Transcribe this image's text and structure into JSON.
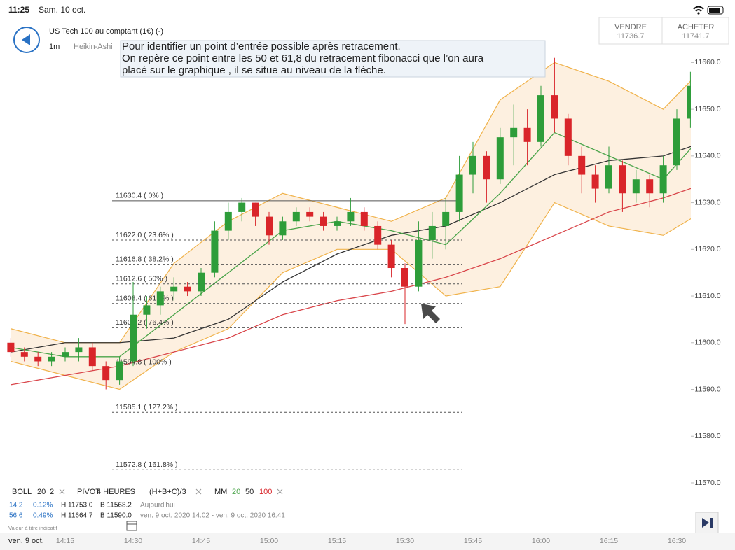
{
  "status_bar": {
    "time": "11:25",
    "date": "Sam. 10 oct."
  },
  "header": {
    "instrument": "US Tech 100 au comptant (1€) (-)",
    "interval": "1m",
    "chart_style": "Heikin-Ashi",
    "sell_label": "VENDRE",
    "sell_price": "11736.7",
    "buy_label": "ACHETER",
    "buy_price": "11741.7"
  },
  "annotation": {
    "lines": [
      "Pour identifier un point d’entrée possible après retracement.",
      "On repère ce point entre les 50 et 61,8 du retracement fibonacci que l’on aura",
      "placé sur le graphique , il se situe au niveau de la flèche."
    ]
  },
  "chart_data": {
    "type": "candlestick",
    "up_color": "#2e9d3a",
    "down_color": "#d9252a",
    "candles": [
      [
        11600,
        11601,
        11597,
        11598
      ],
      [
        11598,
        11599,
        11596,
        11597
      ],
      [
        11597,
        11598,
        11595,
        11596
      ],
      [
        11596,
        11598,
        11595,
        11597
      ],
      [
        11597,
        11599,
        11596,
        11598
      ],
      [
        11598,
        11601,
        11596,
        11599
      ],
      [
        11599,
        11600,
        11594,
        11595
      ],
      [
        11595,
        11596,
        11590,
        11592
      ],
      [
        11592,
        11597,
        11591,
        11596
      ],
      [
        11596,
        11613,
        11595,
        11606
      ],
      [
        11606,
        11610,
        11603,
        11608
      ],
      [
        11608,
        11612,
        11606,
        11611
      ],
      [
        11611,
        11614,
        11609,
        11612
      ],
      [
        11612,
        11613,
        11610,
        11611
      ],
      [
        11611,
        11616,
        11610,
        11615
      ],
      [
        11615,
        11626,
        11614,
        11624
      ],
      [
        11624,
        11630,
        11622,
        11628
      ],
      [
        11628,
        11631,
        11626,
        11630
      ],
      [
        11630,
        11630,
        11625,
        11627
      ],
      [
        11627,
        11628,
        11621,
        11623
      ],
      [
        11623,
        11627,
        11622,
        11626
      ],
      [
        11626,
        11629,
        11625,
        11628
      ],
      [
        11628,
        11629,
        11626,
        11627
      ],
      [
        11627,
        11628,
        11624,
        11625
      ],
      [
        11625,
        11627,
        11624,
        11626
      ],
      [
        11626,
        11631,
        11625,
        11628
      ],
      [
        11628,
        11629,
        11624,
        11625
      ],
      [
        11625,
        11626,
        11620,
        11621
      ],
      [
        11621,
        11622,
        11614,
        11616
      ],
      [
        11616,
        11617,
        11604,
        11612
      ],
      [
        11612,
        11626,
        11611,
        11622
      ],
      [
        11622,
        11628,
        11618,
        11625
      ],
      [
        11625,
        11631,
        11620,
        11628
      ],
      [
        11628,
        11640,
        11626,
        11636
      ],
      [
        11636,
        11643,
        11632,
        11640
      ],
      [
        11640,
        11641,
        11630,
        11635
      ],
      [
        11635,
        11646,
        11634,
        11644
      ],
      [
        11644,
        11651,
        11638,
        11646
      ],
      [
        11646,
        11650,
        11638,
        11643
      ],
      [
        11643,
        11655,
        11642,
        11653
      ],
      [
        11653,
        11661,
        11645,
        11648
      ],
      [
        11648,
        11649,
        11638,
        11640
      ],
      [
        11640,
        11642,
        11632,
        11636
      ],
      [
        11636,
        11638,
        11630,
        11633
      ],
      [
        11633,
        11642,
        11632,
        11638
      ],
      [
        11638,
        11639,
        11628,
        11632
      ],
      [
        11632,
        11637,
        11630,
        11635
      ],
      [
        11635,
        11636,
        11629,
        11632
      ],
      [
        11632,
        11640,
        11630,
        11638
      ],
      [
        11638,
        11650,
        11637,
        11648
      ],
      [
        11648,
        11658,
        11646,
        11655
      ],
      [
        11655,
        11663,
        11652,
        11660
      ],
      [
        11660,
        11661,
        11654,
        11656
      ]
    ],
    "band_fill": "#fdf0e0",
    "band": {
      "upper": [
        11603,
        11600,
        11600,
        11617,
        11626,
        11632,
        11629,
        11626,
        11631,
        11652,
        11660,
        11656,
        11650,
        11662
      ],
      "lower": [
        11596,
        11593,
        11590,
        11598,
        11603,
        11615,
        11620,
        11620,
        11610,
        11612,
        11630,
        11625,
        11623,
        11630
      ],
      "color": "#f0b24a"
    },
    "lines": [
      {
        "color": "#d9454a",
        "values": [
          11591,
          11593,
          11595,
          11598,
          11601,
          11606,
          11609,
          11611,
          11614,
          11618,
          11623,
          11628,
          11631,
          11635
        ]
      },
      {
        "color": "#333333",
        "values": [
          11598,
          11600,
          11600,
          11601,
          11605,
          11613,
          11619,
          11623,
          11625,
          11630,
          11636,
          11639,
          11640,
          11644
        ]
      },
      {
        "color": "#4aa44a",
        "values": [
          11599,
          11597,
          11597,
          11606,
          11615,
          11624,
          11626,
          11624,
          11621,
          11632,
          11645,
          11640,
          11635,
          11648
        ]
      }
    ],
    "fib_levels": [
      {
        "value": 11630.4,
        "label": "11630.4 ( 0% )"
      },
      {
        "value": 11622.0,
        "label": "11622.0 ( 23.6% )"
      },
      {
        "value": 11616.8,
        "label": "11616.8 ( 38.2% )"
      },
      {
        "value": 11612.6,
        "label": "11612.6 ( 50% )"
      },
      {
        "value": 11608.4,
        "label": "11608.4 ( 61.8% )"
      },
      {
        "value": 11603.2,
        "label": "11603.2 ( 76.4% )"
      },
      {
        "value": 11594.8,
        "label": "11594.8 ( 100% )"
      },
      {
        "value": 11585.1,
        "label": "11585.1 ( 127.2% )"
      },
      {
        "value": 11572.8,
        "label": "11572.8 ( 161.8% )"
      }
    ],
    "ylim": [
      11567,
      11668
    ],
    "yticks": [
      {
        "value": 11570,
        "label": "11570.0"
      },
      {
        "value": 11580,
        "label": "11580.0"
      },
      {
        "value": 11590,
        "label": "11590.0"
      },
      {
        "value": 11600,
        "label": "11600.0"
      },
      {
        "value": 11610,
        "label": "11610.0"
      },
      {
        "value": 11620,
        "label": "11620.0"
      },
      {
        "value": 11630,
        "label": "11630.0"
      },
      {
        "value": 11640,
        "label": "11640.0"
      },
      {
        "value": 11650,
        "label": "11650.0"
      },
      {
        "value": 11660,
        "label": "11660.0"
      }
    ],
    "date_label": "ven. 9 oct.",
    "time_labels": [
      "14:15",
      "14:30",
      "14:45",
      "15:00",
      "15:15",
      "15:30",
      "15:45",
      "16:00",
      "16:15",
      "16:30"
    ]
  },
  "indicators": {
    "boll": "BOLL",
    "boll_period": "20",
    "boll_dev": "2",
    "pivot": "PIVOT",
    "pivot_period": "4 HEURES",
    "pivot_formula": "(H+B+C)/3",
    "mm": "MM",
    "mm_1": "20",
    "mm_2": "50",
    "mm_3": "100",
    "rows": [
      [
        "14.2",
        "0.12%",
        "H 11753.0",
        "B 11568.2",
        "Aujourd'hui"
      ],
      [
        "56.6",
        "0.49%",
        "H 11664.7",
        "B 11590.0",
        "ven. 9 oct. 2020 14:02 - ven. 9 oct. 2020 16:41"
      ]
    ],
    "disclaimer": "Valeur à titre indicatif"
  }
}
